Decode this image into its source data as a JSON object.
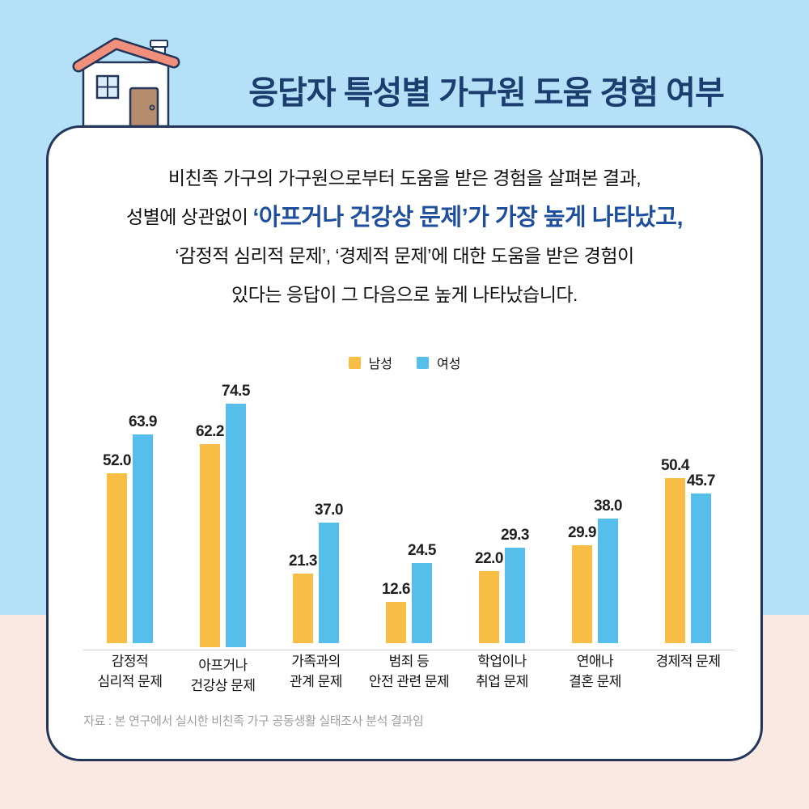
{
  "header": {
    "title": "응답자 특성별 가구원 도움 경험 여부"
  },
  "intro": {
    "line1": "비친족 가구의 가구원으로부터 도움을 받은 경험을 살펴본 결과,",
    "line2_prefix": "성별에 상관없이 ",
    "line2_highlight": "‘아프거나 건강상 문제’가 가장 높게 나타났고,",
    "line3": "‘감정적 심리적 문제’, ‘경제적 문제’에 대한 도움을 받은 경험이",
    "line4": "있다는 응답이 그 다음으로 높게 나타났습니다."
  },
  "chart_data": {
    "type": "bar",
    "title": "응답자 특성별 가구원 도움 경험 여부",
    "categories": [
      [
        "감정적",
        "심리적 문제"
      ],
      [
        "아프거나",
        "건강상 문제"
      ],
      [
        "가족과의",
        "관계 문제"
      ],
      [
        "범죄 등",
        "안전 관련 문제"
      ],
      [
        "학업이나",
        "취업 문제"
      ],
      [
        "연애나",
        "결혼 문제"
      ],
      [
        "경제적 문제"
      ]
    ],
    "series": [
      {
        "name": "남성",
        "color": "#F8BD44",
        "values": [
          52.0,
          62.2,
          21.3,
          12.6,
          22.0,
          29.9,
          50.4
        ]
      },
      {
        "name": "여성",
        "color": "#55BEEA",
        "values": [
          63.9,
          74.5,
          37.0,
          24.5,
          29.3,
          38.0,
          45.7
        ]
      }
    ],
    "xlabel": "",
    "ylabel": "",
    "ylim": [
      0,
      80
    ],
    "grid": false,
    "value_labels": true,
    "legend_position": "top-center"
  },
  "source_note": "자료 : 본 연구에서 실시한 비친족 가구 공동생활 실태조사 분석 결과임",
  "colors": {
    "background_top": "#B4E1F8",
    "background_bottom": "#FAE9E2",
    "card_border": "#24355A",
    "title_text": "#1C3E6E",
    "highlight_text": "#1E4F9C",
    "male_bar": "#F8BD44",
    "female_bar": "#55BEEA",
    "axis_line": "#CCCCCC",
    "source_text": "#9E9E9E",
    "house_roof": "#F0907C",
    "house_door": "#B58C6C",
    "house_window": "#D8ECFA"
  }
}
